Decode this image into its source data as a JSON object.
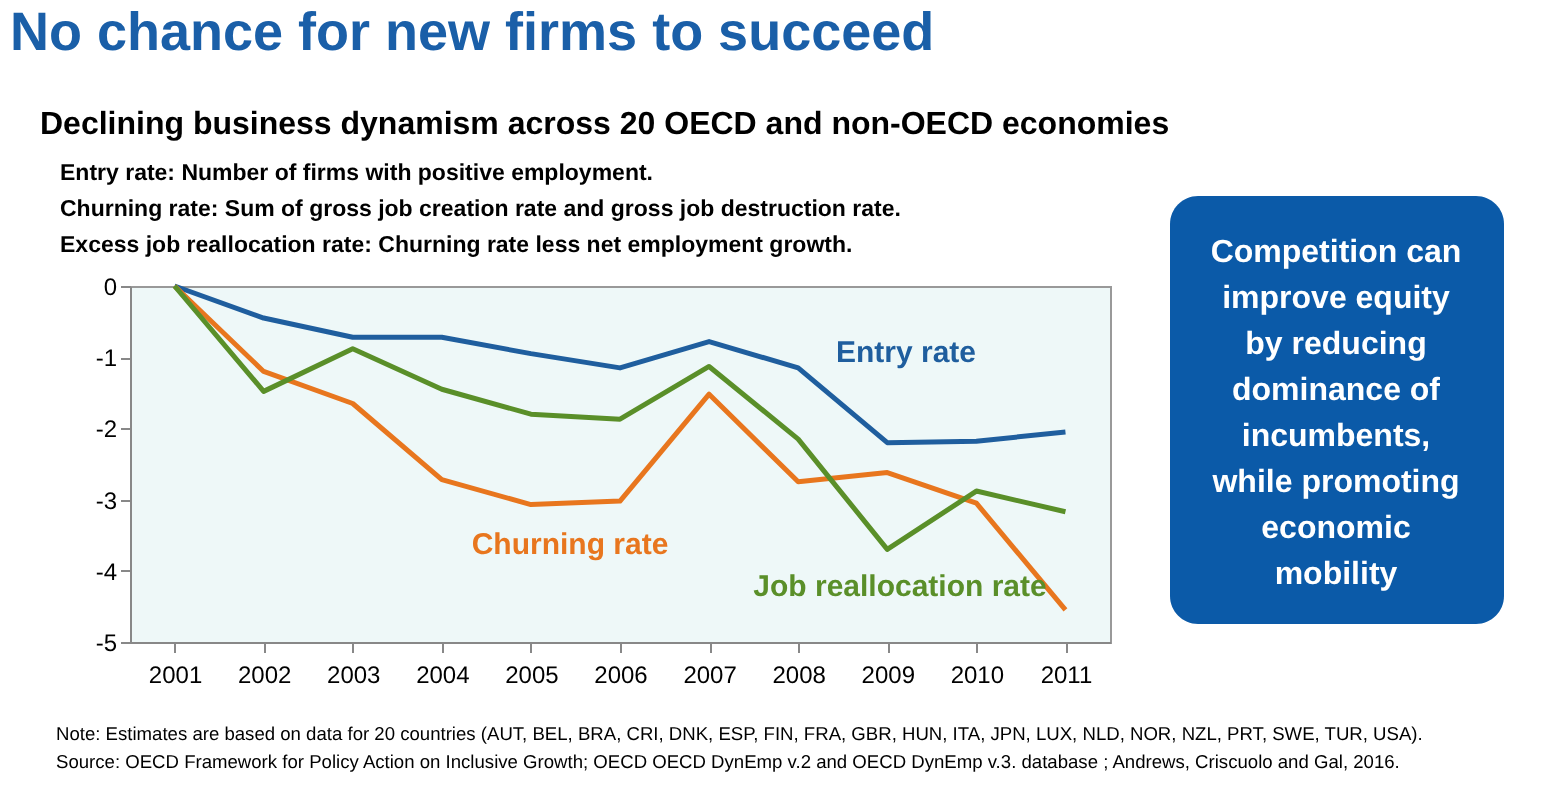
{
  "chart_data": {
    "type": "line",
    "title": "No chance for new firms to succeed",
    "subtitle": "Declining business dynamism across 20 OECD and non-OECD economies",
    "categories": [
      "2001",
      "2002",
      "2003",
      "2004",
      "2005",
      "2006",
      "2007",
      "2008",
      "2009",
      "2010",
      "2011"
    ],
    "series": [
      {
        "name": "Entry rate",
        "color": "#1f5e9e",
        "values": [
          0,
          -0.45,
          -0.72,
          -0.72,
          -0.95,
          -1.15,
          -0.78,
          -1.15,
          -2.2,
          -2.18,
          -2.05
        ]
      },
      {
        "name": "Churning rate",
        "color": "#e8761e",
        "values": [
          0,
          -1.2,
          -1.65,
          -2.72,
          -3.07,
          -3.02,
          -1.52,
          -2.75,
          -2.62,
          -3.05,
          -4.55
        ]
      },
      {
        "name": "Job reallocation rate",
        "color": "#5a8f29",
        "values": [
          0,
          -1.48,
          -0.88,
          -1.45,
          -1.8,
          -1.87,
          -1.13,
          -2.15,
          -3.7,
          -2.88,
          -3.17
        ]
      }
    ],
    "ylim": [
      -5,
      0
    ],
    "yticks": [
      -5,
      -4,
      -3,
      -2,
      -1,
      0
    ],
    "grid": false,
    "marker": "none",
    "line_style": "solid",
    "annotations": [
      "Entry rate: Number of firms with positive employment.",
      "Churning rate: Sum of gross job creation rate and gross job destruction rate.",
      "Excess job reallocation rate: Churning rate less net employment growth.",
      "Competition can\nimprove equity\nby reducing\ndominance of\nincumbents,\nwhile promoting\neconomic\nmobility",
      "Note: Estimates are based on data for 20 countries (AUT, BEL, BRA, CRI, DNK, ESP, FIN, FRA, GBR, HUN, ITA, JPN, LUX, NLD, NOR, NZL, PRT, SWE, TUR, USA).",
      "Source: OECD Framework for Policy Action on Inclusive  Growth; OECD OECD DynEmp v.2 and OECD DynEmp v.3. database ; Andrews, Criscuolo and Gal, 2016."
    ]
  }
}
